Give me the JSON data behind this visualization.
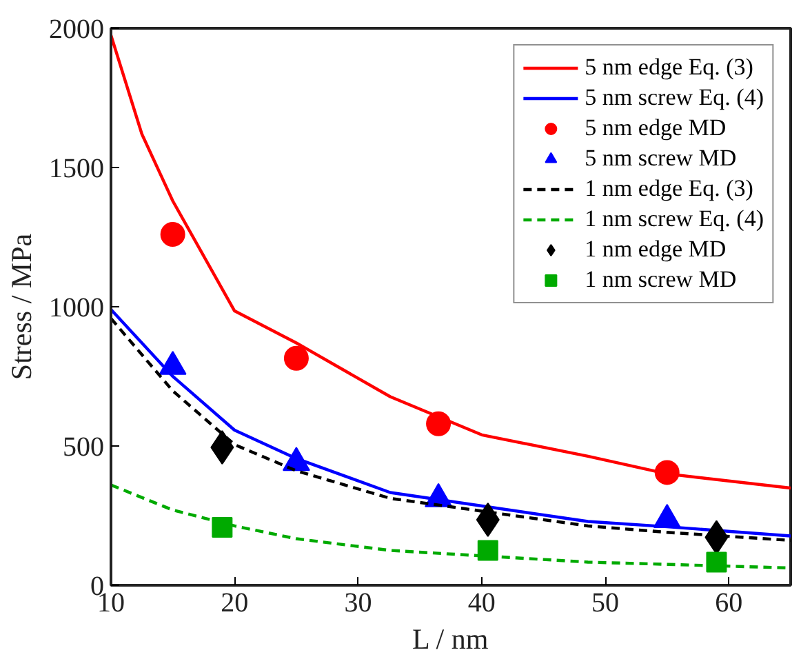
{
  "chart_data": {
    "type": "line",
    "xlabel": "L / nm",
    "ylabel": "Stress / MPa",
    "xlim": [
      10,
      65
    ],
    "ylim": [
      0,
      2000
    ],
    "xticks": [
      10,
      20,
      30,
      40,
      50,
      60
    ],
    "yticks": [
      0,
      500,
      1000,
      1500,
      2000
    ],
    "grid": false,
    "legend": "top right",
    "series": [
      {
        "name": "5 nm edge Eq. (3)",
        "line_style": "solid",
        "color": "#ff0000",
        "x": [
          10,
          12.5,
          15,
          20,
          25,
          32.6,
          40,
          48.6,
          55,
          65
        ],
        "values": [
          1975,
          1620,
          1380,
          985,
          870,
          677,
          540,
          463,
          400,
          349
        ]
      },
      {
        "name": "5 nm screw Eq. (4)",
        "line_style": "solid",
        "color": "#0000ff",
        "x": [
          10,
          15,
          20,
          25,
          32.6,
          48.6,
          55,
          65
        ],
        "values": [
          990,
          750,
          557,
          455,
          333,
          229,
          210,
          177
        ]
      },
      {
        "name": "5 nm edge MD",
        "type": "scatter",
        "marker": "circle",
        "color": "#ff0000",
        "x": [
          15,
          25,
          36.5,
          55
        ],
        "values": [
          1260,
          815,
          580,
          405
        ]
      },
      {
        "name": "5 nm screw MD",
        "type": "scatter",
        "marker": "triangle",
        "color": "#0000ff",
        "x": [
          15,
          25,
          36.5,
          55
        ],
        "values": [
          785,
          440,
          310,
          235
        ]
      },
      {
        "name": "1 nm edge Eq. (3)",
        "line_style": "dashed",
        "color": "#000000",
        "x": [
          10,
          15,
          20,
          25,
          32.6,
          48.6,
          55,
          65
        ],
        "values": [
          958,
          698,
          505,
          411,
          312,
          213,
          190,
          161
        ]
      },
      {
        "name": "1 nm screw Eq. (4)",
        "line_style": "dashed",
        "color": "#00aa00",
        "x": [
          10,
          15,
          20,
          25,
          32.6,
          48.6,
          55,
          65
        ],
        "values": [
          360,
          270,
          213,
          167,
          125,
          83,
          75,
          62
        ]
      },
      {
        "name": "1 nm edge MD",
        "type": "scatter",
        "marker": "diamond",
        "color": "#000000",
        "x": [
          19,
          40.5,
          59
        ],
        "values": [
          495,
          235,
          172
        ]
      },
      {
        "name": "1 nm screw MD",
        "type": "scatter",
        "marker": "square",
        "color": "#00aa00",
        "x": [
          19,
          40.5,
          59
        ],
        "values": [
          208,
          125,
          83
        ]
      }
    ]
  }
}
